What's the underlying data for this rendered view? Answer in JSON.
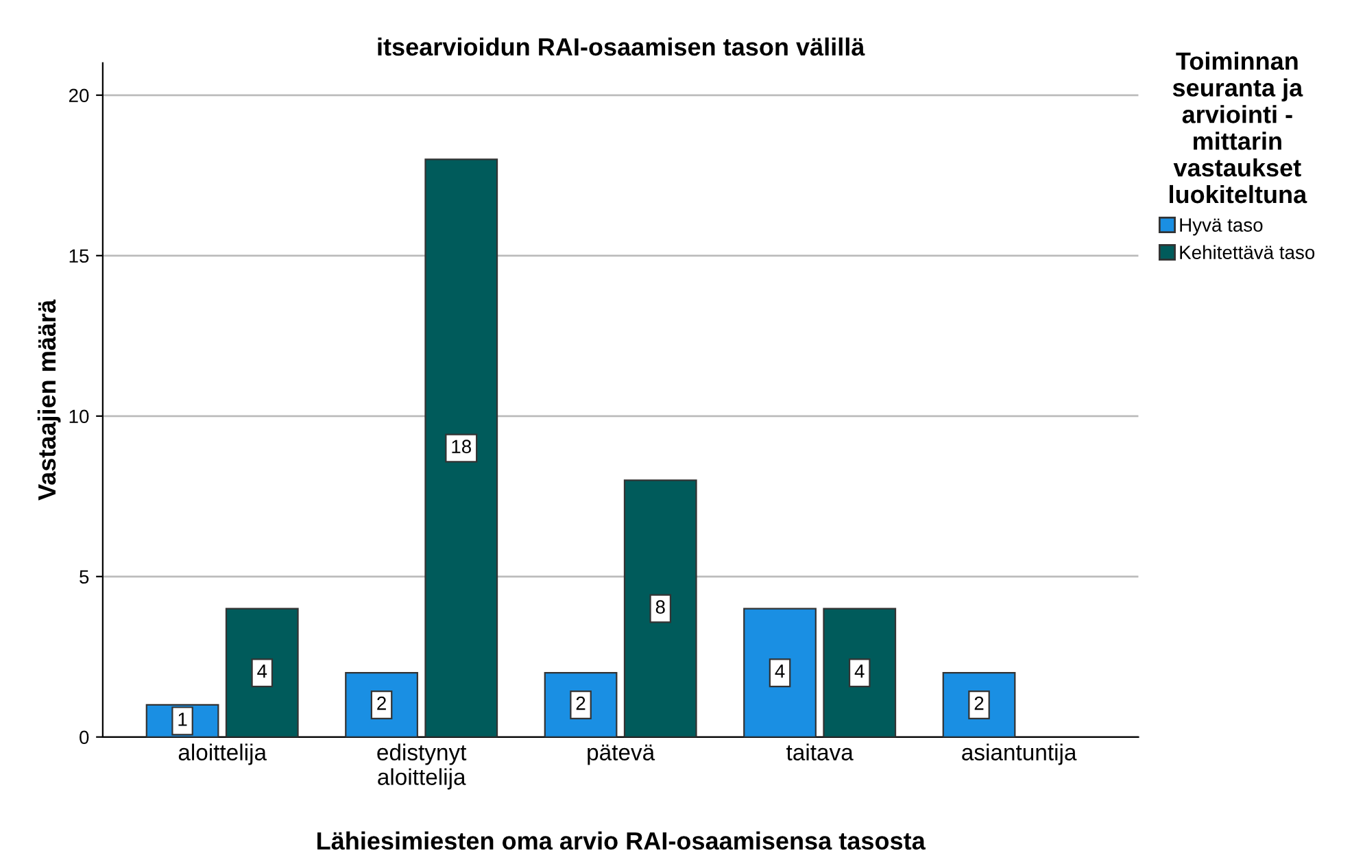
{
  "chart_data": {
    "type": "bar",
    "title": "itsearvioidun RAI-osaamisen tason välillä",
    "xlabel": "Lähiesimiesten oma arvio RAI-osaamisensa tasosta",
    "ylabel": "Vastaajien määrä",
    "legend_title": "Toiminnan\nseuranta ja\narviointi -\nmittarin\nvastaukset\nluokiteltuna",
    "categories": [
      "aloittelija",
      "edistynyt\naloittelija",
      "pätevä",
      "taitava",
      "asiantuntija"
    ],
    "series": [
      {
        "name": "Hyvä taso",
        "color": "#1a8fe3",
        "values": [
          1,
          2,
          2,
          4,
          2
        ]
      },
      {
        "name": "Kehitettävä taso",
        "color": "#005b5b",
        "values": [
          4,
          18,
          8,
          4,
          null
        ]
      }
    ],
    "ylim": [
      0,
      21
    ],
    "yticks": [
      0,
      5,
      10,
      15,
      20
    ],
    "grid": "y",
    "legend": "top right",
    "data_labels": true
  }
}
